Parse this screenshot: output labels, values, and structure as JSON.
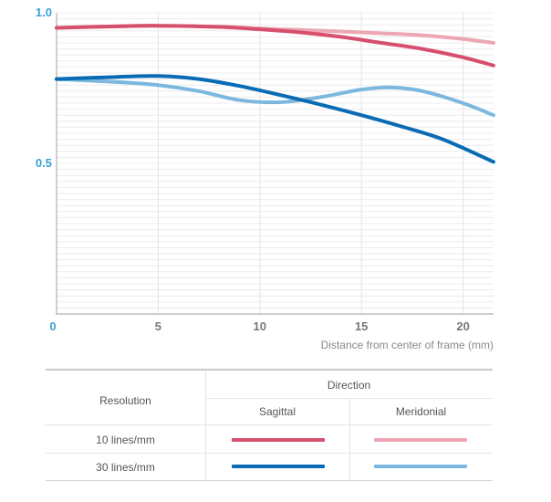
{
  "chart_data": {
    "type": "line",
    "x_axis": {
      "ticks": [
        "0",
        "5",
        "10",
        "15",
        "20"
      ],
      "range": [
        0,
        21.5
      ],
      "label": "Distance from center of frame (mm)"
    },
    "y_axis": {
      "ticks": [
        "0.5",
        "1.0"
      ],
      "range": [
        0,
        1.0
      ]
    },
    "series": [
      {
        "name": "10 lines/mm Sagittal",
        "color": "#d6506e",
        "points": [
          [
            0,
            0.95
          ],
          [
            3,
            0.955
          ],
          [
            5,
            0.957
          ],
          [
            8,
            0.953
          ],
          [
            10,
            0.945
          ],
          [
            12,
            0.935
          ],
          [
            14,
            0.92
          ],
          [
            16,
            0.9
          ],
          [
            18,
            0.88
          ],
          [
            20,
            0.852
          ],
          [
            21.5,
            0.825
          ]
        ]
      },
      {
        "name": "10 lines/mm Meridonial",
        "color": "#eca6b4",
        "points": [
          [
            0,
            0.95
          ],
          [
            3,
            0.955
          ],
          [
            5,
            0.957
          ],
          [
            8,
            0.954
          ],
          [
            10,
            0.948
          ],
          [
            12,
            0.943
          ],
          [
            14,
            0.938
          ],
          [
            16,
            0.932
          ],
          [
            18,
            0.925
          ],
          [
            20,
            0.913
          ],
          [
            21.5,
            0.9
          ]
        ]
      },
      {
        "name": "30 lines/mm Sagittal",
        "color": "#0a6bb5",
        "points": [
          [
            0,
            0.78
          ],
          [
            3,
            0.787
          ],
          [
            5,
            0.79
          ],
          [
            7,
            0.78
          ],
          [
            9,
            0.757
          ],
          [
            11,
            0.727
          ],
          [
            13,
            0.695
          ],
          [
            15,
            0.66
          ],
          [
            17,
            0.622
          ],
          [
            19,
            0.58
          ],
          [
            21.5,
            0.505
          ]
        ]
      },
      {
        "name": "30 lines/mm Meridonial",
        "color": "#7cb8de",
        "points": [
          [
            0,
            0.78
          ],
          [
            3,
            0.77
          ],
          [
            5,
            0.76
          ],
          [
            7,
            0.74
          ],
          [
            9,
            0.71
          ],
          [
            11,
            0.703
          ],
          [
            13,
            0.72
          ],
          [
            15,
            0.745
          ],
          [
            16.5,
            0.752
          ],
          [
            18,
            0.74
          ],
          [
            20,
            0.7
          ],
          [
            21.5,
            0.66
          ]
        ]
      }
    ]
  },
  "legend": {
    "header_resolution": "Resolution",
    "header_direction": "Direction",
    "col_sagittal": "Sagittal",
    "col_meridonial": "Meridonial",
    "rows": [
      {
        "label": "10 lines/mm",
        "sagittal_color": "#d6506e",
        "meridonial_color": "#eca6b4"
      },
      {
        "label": "30 lines/mm",
        "sagittal_color": "#0a6bb5",
        "meridonial_color": "#7cb8de"
      }
    ]
  }
}
